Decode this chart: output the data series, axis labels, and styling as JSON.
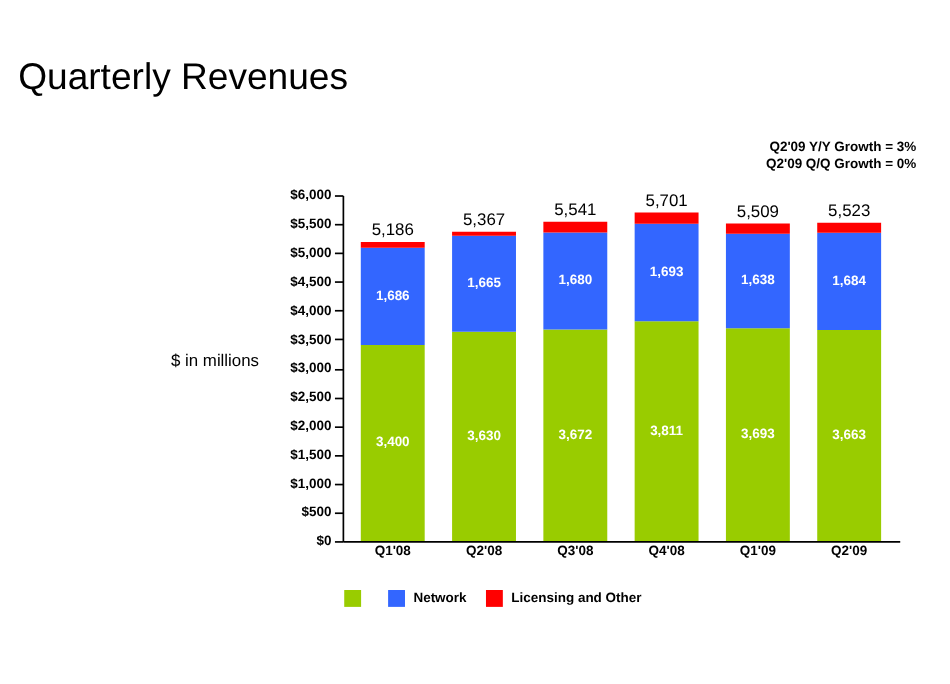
{
  "chart_data": {
    "type": "bar",
    "stacked": true,
    "title": "Quarterly Revenues",
    "ylabel": "$ in millions",
    "categories": [
      "Q1'08",
      "Q2'08",
      "Q3'08",
      "Q4'08",
      "Q1'09",
      "Q2'09"
    ],
    "series": [
      {
        "color": "#99cc00",
        "values": [
          3400,
          3630,
          3672,
          3811,
          3693,
          3663
        ],
        "value_labels": [
          "3,400",
          "3,630",
          "3,672",
          "3,811",
          "3,693",
          "3,663"
        ]
      },
      {
        "name": "Network",
        "color": "#3366ff",
        "values": [
          1686,
          1665,
          1680,
          1693,
          1638,
          1684
        ],
        "value_labels": [
          "1,686",
          "1,665",
          "1,680",
          "1,693",
          "1,638",
          "1,684"
        ]
      },
      {
        "name": "Licensing and Other",
        "color": "#ff0000",
        "values": [
          100,
          72,
          189,
          197,
          178,
          176
        ]
      }
    ],
    "totals": [
      "5,186",
      "5,367",
      "5,541",
      "5,701",
      "5,509",
      "5,523"
    ],
    "ylim": [
      0,
      6000
    ],
    "yticks": [
      {
        "value": 0,
        "label": "$0"
      },
      {
        "value": 500,
        "label": "$500"
      },
      {
        "value": 1000,
        "label": "$1,000"
      },
      {
        "value": 1500,
        "label": "$1,500"
      },
      {
        "value": 2000,
        "label": "$2,000"
      },
      {
        "value": 2500,
        "label": "$2,500"
      },
      {
        "value": 3000,
        "label": "$3,000"
      },
      {
        "value": 3500,
        "label": "$3,500"
      },
      {
        "value": 4000,
        "label": "$4,000"
      },
      {
        "value": 4500,
        "label": "$4,500"
      },
      {
        "value": 5000,
        "label": "$5,000"
      },
      {
        "value": 5500,
        "label": "$5,500"
      },
      {
        "value": 6000,
        "label": "$6,000"
      }
    ],
    "annotations": [
      "Q2'09 Y/Y Growth = 3%",
      "Q2'09 Q/Q Growth = 0%"
    ],
    "grid": false,
    "legend": "bottom"
  }
}
